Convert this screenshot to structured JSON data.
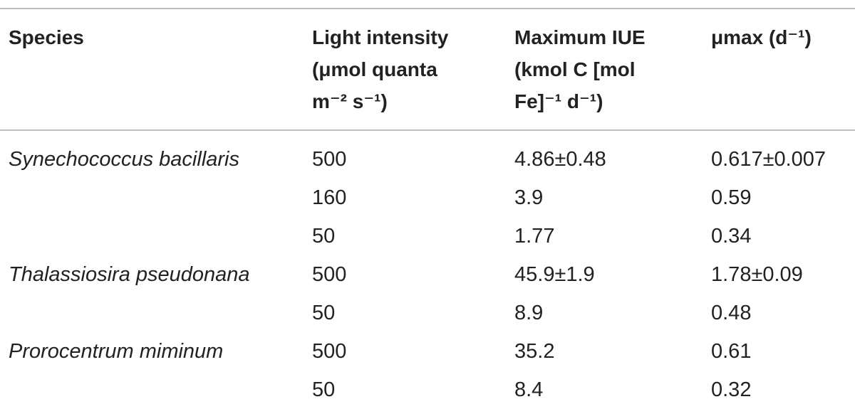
{
  "table": {
    "header": [
      [
        "Species"
      ],
      [
        "Light intensity",
        "(μmol quanta",
        "m⁻² s⁻¹)"
      ],
      [
        "Maximum IUE",
        "(kmol C [mol",
        "Fe]⁻¹ d⁻¹)"
      ],
      [
        "μmax (d⁻¹)"
      ]
    ],
    "rows": [
      [
        "Synechococcus bacillaris",
        "500",
        "4.86±0.48",
        "0.617±0.007"
      ],
      [
        null,
        "160",
        "3.9",
        "0.59"
      ],
      [
        null,
        "50",
        "1.77",
        "0.34"
      ],
      [
        "Thalassiosira pseudonana",
        "500",
        "45.9±1.9",
        "1.78±0.09"
      ],
      [
        null,
        "50",
        "8.9",
        "0.48"
      ],
      [
        "Prorocentrum miminum",
        "500",
        "35.2",
        "0.61"
      ],
      [
        null,
        "50",
        "8.4",
        "0.32"
      ]
    ]
  }
}
